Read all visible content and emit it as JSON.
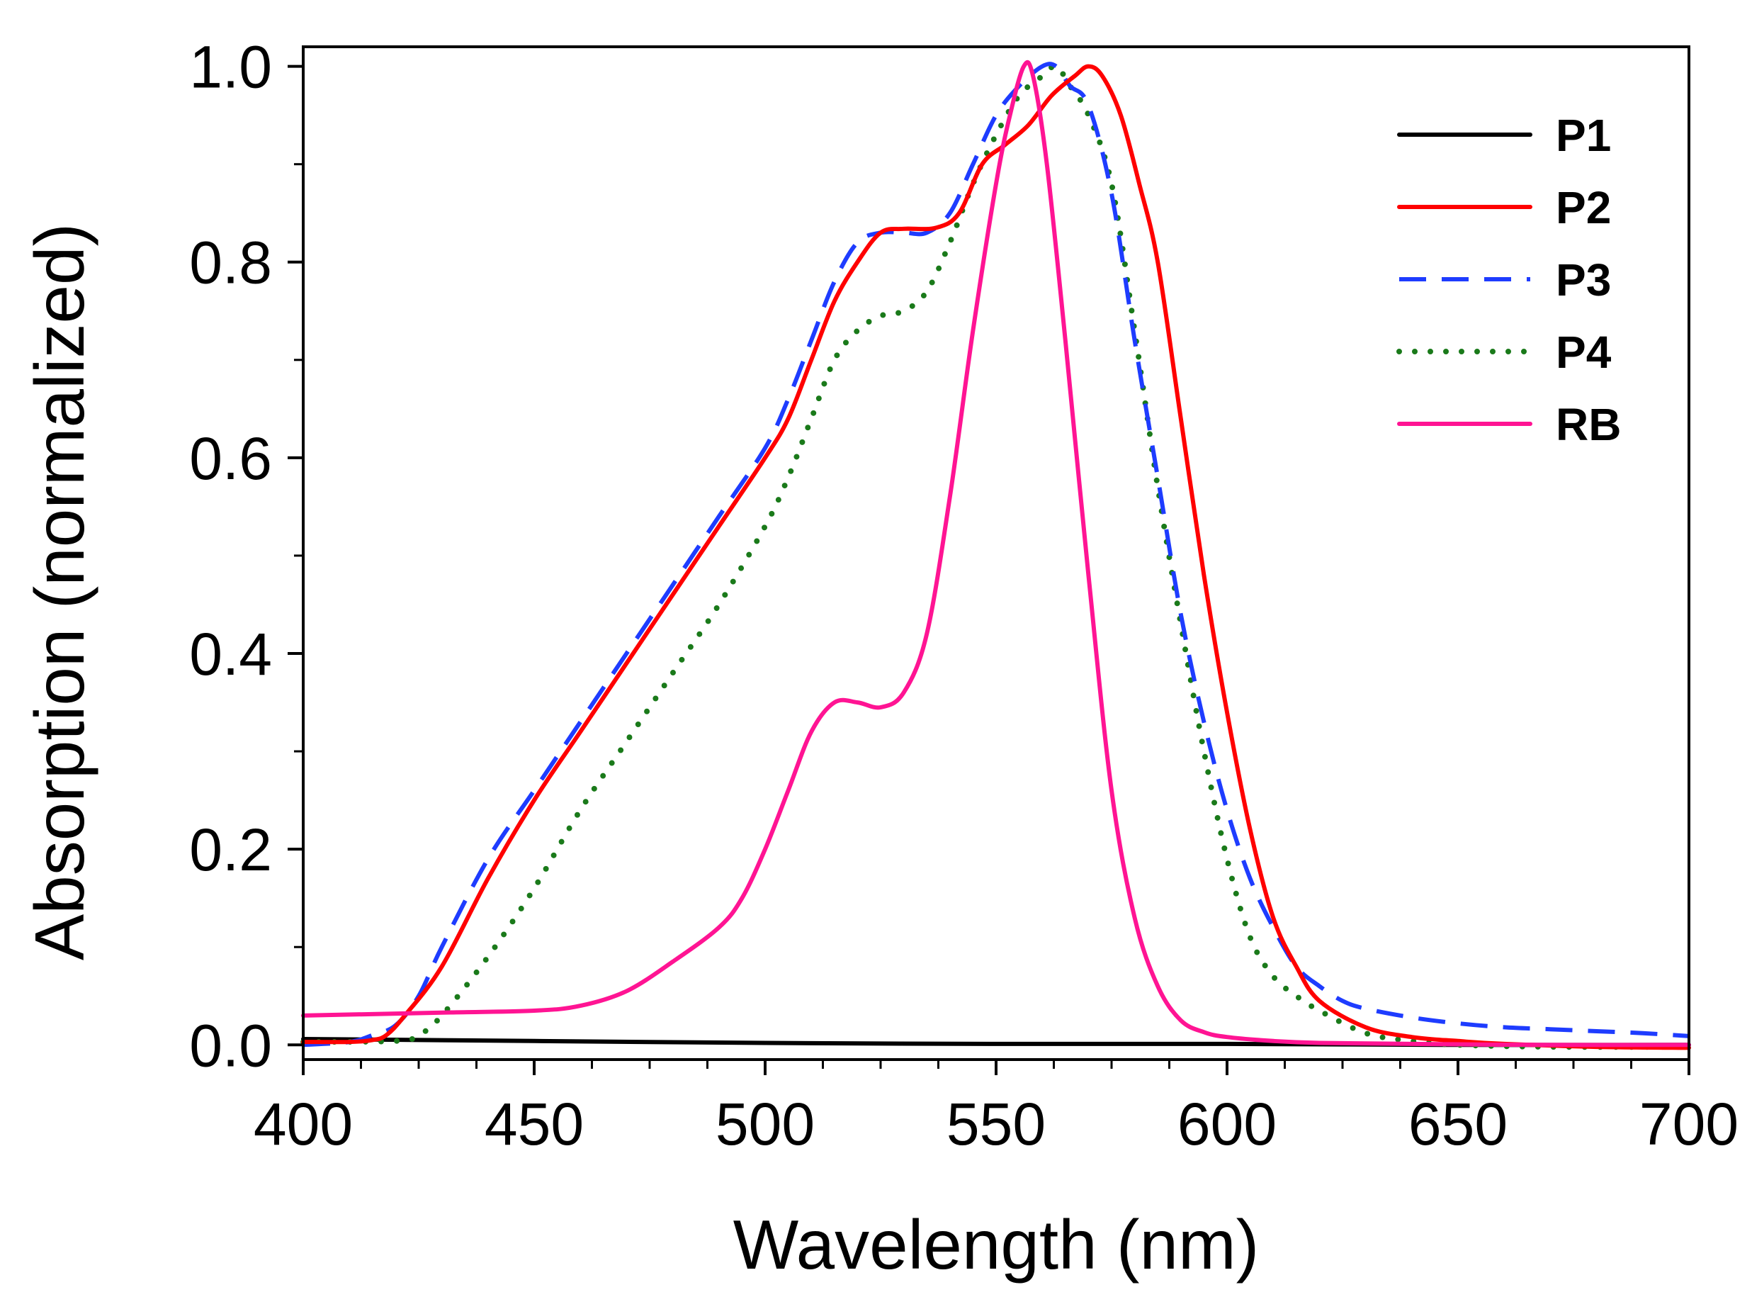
{
  "chart_data": {
    "type": "line",
    "title": "",
    "xlabel": "Wavelength (nm)",
    "ylabel": "Absorption (normalized)",
    "xlim": [
      400,
      700
    ],
    "ylim": [
      -0.015,
      1.02
    ],
    "x_ticks": [
      400,
      450,
      500,
      550,
      600,
      650,
      700
    ],
    "x_tick_labels": [
      "400",
      "450",
      "500",
      "550",
      "600",
      "650",
      "700"
    ],
    "x_minor_step": 12.5,
    "y_ticks": [
      0.0,
      0.2,
      0.4,
      0.6,
      0.8,
      1.0
    ],
    "y_tick_labels": [
      "0.0",
      "0.2",
      "0.4",
      "0.6",
      "0.8",
      "1.0"
    ],
    "y_minor_step": 0.1,
    "grid": false,
    "legend_position": "top-right",
    "series": [
      {
        "name": "P1",
        "color": "#000000",
        "style": "solid",
        "points": [
          [
            400,
            0.006
          ],
          [
            450,
            0.004
          ],
          [
            500,
            0.002
          ],
          [
            550,
            0.001
          ],
          [
            600,
            0.001
          ],
          [
            650,
            0.0
          ],
          [
            700,
            0.0
          ]
        ]
      },
      {
        "name": "P2",
        "color": "#ff0000",
        "style": "solid",
        "points": [
          [
            400,
            0.003
          ],
          [
            410,
            0.003
          ],
          [
            415,
            0.005
          ],
          [
            418,
            0.01
          ],
          [
            422,
            0.03
          ],
          [
            430,
            0.08
          ],
          [
            440,
            0.17
          ],
          [
            450,
            0.25
          ],
          [
            460,
            0.32
          ],
          [
            470,
            0.39
          ],
          [
            480,
            0.46
          ],
          [
            490,
            0.53
          ],
          [
            500,
            0.6
          ],
          [
            505,
            0.64
          ],
          [
            510,
            0.7
          ],
          [
            515,
            0.76
          ],
          [
            520,
            0.8
          ],
          [
            525,
            0.83
          ],
          [
            530,
            0.834
          ],
          [
            537,
            0.835
          ],
          [
            542,
            0.85
          ],
          [
            547,
            0.9
          ],
          [
            552,
            0.92
          ],
          [
            557,
            0.94
          ],
          [
            562,
            0.97
          ],
          [
            567,
            0.99
          ],
          [
            570,
            1.0
          ],
          [
            573,
            0.99
          ],
          [
            577,
            0.95
          ],
          [
            581,
            0.88
          ],
          [
            585,
            0.8
          ],
          [
            590,
            0.64
          ],
          [
            595,
            0.48
          ],
          [
            600,
            0.34
          ],
          [
            605,
            0.22
          ],
          [
            610,
            0.13
          ],
          [
            615,
            0.08
          ],
          [
            620,
            0.045
          ],
          [
            630,
            0.018
          ],
          [
            640,
            0.008
          ],
          [
            650,
            0.004
          ],
          [
            660,
            0.001
          ],
          [
            680,
            -0.002
          ],
          [
            700,
            -0.003
          ]
        ]
      },
      {
        "name": "P3",
        "color": "#1e3cff",
        "style": "dashed",
        "points": [
          [
            400,
            0.0
          ],
          [
            410,
            0.003
          ],
          [
            415,
            0.01
          ],
          [
            420,
            0.02
          ],
          [
            425,
            0.05
          ],
          [
            430,
            0.1
          ],
          [
            440,
            0.19
          ],
          [
            450,
            0.26
          ],
          [
            460,
            0.33
          ],
          [
            470,
            0.4
          ],
          [
            480,
            0.47
          ],
          [
            490,
            0.54
          ],
          [
            500,
            0.61
          ],
          [
            505,
            0.66
          ],
          [
            510,
            0.72
          ],
          [
            515,
            0.78
          ],
          [
            520,
            0.82
          ],
          [
            525,
            0.83
          ],
          [
            530,
            0.83
          ],
          [
            535,
            0.83
          ],
          [
            540,
            0.85
          ],
          [
            545,
            0.9
          ],
          [
            550,
            0.95
          ],
          [
            555,
            0.98
          ],
          [
            560,
            1.0
          ],
          [
            563,
            1.0
          ],
          [
            566,
            0.98
          ],
          [
            570,
            0.96
          ],
          [
            575,
            0.87
          ],
          [
            580,
            0.72
          ],
          [
            585,
            0.58
          ],
          [
            590,
            0.44
          ],
          [
            595,
            0.33
          ],
          [
            600,
            0.24
          ],
          [
            605,
            0.17
          ],
          [
            610,
            0.12
          ],
          [
            615,
            0.08
          ],
          [
            620,
            0.06
          ],
          [
            625,
            0.045
          ],
          [
            630,
            0.037
          ],
          [
            640,
            0.028
          ],
          [
            650,
            0.022
          ],
          [
            660,
            0.018
          ],
          [
            670,
            0.016
          ],
          [
            680,
            0.014
          ],
          [
            690,
            0.012
          ],
          [
            700,
            0.009
          ]
        ]
      },
      {
        "name": "P4",
        "color": "#1a7a1a",
        "style": "dotted",
        "points": [
          [
            400,
            0.003
          ],
          [
            420,
            0.004
          ],
          [
            425,
            0.01
          ],
          [
            430,
            0.03
          ],
          [
            440,
            0.09
          ],
          [
            450,
            0.16
          ],
          [
            460,
            0.24
          ],
          [
            470,
            0.31
          ],
          [
            480,
            0.38
          ],
          [
            490,
            0.45
          ],
          [
            500,
            0.53
          ],
          [
            505,
            0.58
          ],
          [
            510,
            0.64
          ],
          [
            515,
            0.7
          ],
          [
            520,
            0.73
          ],
          [
            525,
            0.745
          ],
          [
            530,
            0.75
          ],
          [
            535,
            0.77
          ],
          [
            540,
            0.82
          ],
          [
            545,
            0.88
          ],
          [
            550,
            0.93
          ],
          [
            555,
            0.97
          ],
          [
            560,
            0.99
          ],
          [
            563,
            1.0
          ],
          [
            566,
            0.98
          ],
          [
            570,
            0.95
          ],
          [
            575,
            0.88
          ],
          [
            580,
            0.73
          ],
          [
            585,
            0.57
          ],
          [
            590,
            0.43
          ],
          [
            595,
            0.3
          ],
          [
            600,
            0.19
          ],
          [
            605,
            0.11
          ],
          [
            610,
            0.07
          ],
          [
            615,
            0.05
          ],
          [
            620,
            0.035
          ],
          [
            630,
            0.012
          ],
          [
            640,
            0.004
          ],
          [
            650,
            0.0
          ],
          [
            670,
            -0.002
          ],
          [
            700,
            -0.002
          ]
        ]
      },
      {
        "name": "RB",
        "color": "#ff1493",
        "style": "solid",
        "points": [
          [
            400,
            0.03
          ],
          [
            430,
            0.033
          ],
          [
            450,
            0.035
          ],
          [
            460,
            0.04
          ],
          [
            470,
            0.055
          ],
          [
            480,
            0.085
          ],
          [
            490,
            0.12
          ],
          [
            495,
            0.15
          ],
          [
            500,
            0.2
          ],
          [
            505,
            0.26
          ],
          [
            510,
            0.32
          ],
          [
            515,
            0.35
          ],
          [
            520,
            0.35
          ],
          [
            525,
            0.345
          ],
          [
            530,
            0.36
          ],
          [
            535,
            0.42
          ],
          [
            540,
            0.56
          ],
          [
            545,
            0.73
          ],
          [
            550,
            0.88
          ],
          [
            553,
            0.95
          ],
          [
            556,
            1.0
          ],
          [
            558,
            0.99
          ],
          [
            561,
            0.9
          ],
          [
            565,
            0.72
          ],
          [
            570,
            0.48
          ],
          [
            575,
            0.26
          ],
          [
            580,
            0.13
          ],
          [
            585,
            0.06
          ],
          [
            590,
            0.025
          ],
          [
            595,
            0.013
          ],
          [
            600,
            0.008
          ],
          [
            610,
            0.004
          ],
          [
            620,
            0.002
          ],
          [
            640,
            0.001
          ],
          [
            670,
            0.0
          ],
          [
            700,
            0.0
          ]
        ]
      }
    ]
  }
}
